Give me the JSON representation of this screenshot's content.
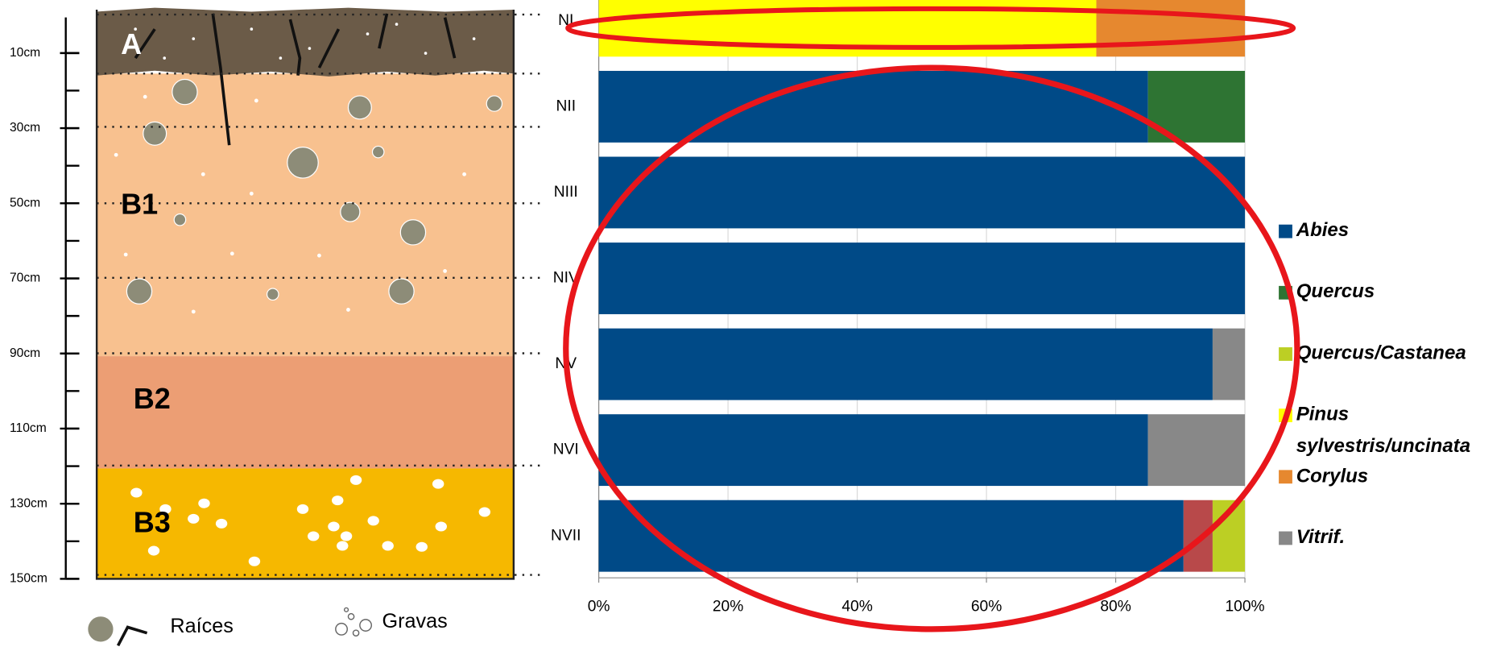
{
  "soil_profile": {
    "depth_labels": [
      "10cm",
      "30cm",
      "50cm",
      "70cm",
      "90cm",
      "110cm",
      "130cm",
      "150cm"
    ],
    "horizons": [
      "A",
      "B1",
      "B2",
      "B3"
    ],
    "legend": [
      "Raíces",
      "Gravas"
    ]
  },
  "chart_data": {
    "type": "stacked_bar_horizontal",
    "categories": [
      "NI",
      "NII",
      "NIII",
      "NIV",
      "NV",
      "NVI",
      "NVII"
    ],
    "series": [
      {
        "name": "Abies",
        "color": "#004a87",
        "values": [
          0,
          85,
          100,
          100,
          95,
          85,
          90.5
        ]
      },
      {
        "name": "Quercus",
        "color": "#2e7433",
        "values": [
          0,
          15,
          0,
          0,
          0,
          0,
          0
        ]
      },
      {
        "name": null,
        "color": "#b8494a",
        "values": [
          0,
          0,
          0,
          0,
          0,
          0,
          4.5
        ]
      },
      {
        "name": "Quercus/Castanea",
        "color": "#bccf24",
        "values": [
          0,
          0,
          0,
          0,
          0,
          0,
          5
        ]
      },
      {
        "name": "Pinus sylvestris/uncinata",
        "color": "#ffff00",
        "values": [
          77,
          0,
          0,
          0,
          0,
          0,
          0
        ]
      },
      {
        "name": "Corylus",
        "color": "#e6882f",
        "values": [
          23,
          0,
          0,
          0,
          0,
          0,
          0
        ]
      },
      {
        "name": "Vitrif.",
        "color": "#888888",
        "values": [
          0,
          0,
          0,
          0,
          5,
          15,
          0
        ]
      }
    ],
    "xlim": [
      0,
      100
    ],
    "xticks": [
      {
        "value": 0,
        "label": "0%"
      },
      {
        "value": 20,
        "label": "20%"
      },
      {
        "value": 40,
        "label": "40%"
      },
      {
        "value": 60,
        "label": "60%"
      },
      {
        "value": 80,
        "label": "80%"
      },
      {
        "value": 100,
        "label": "100%"
      }
    ],
    "grid": true,
    "legend": "right"
  }
}
